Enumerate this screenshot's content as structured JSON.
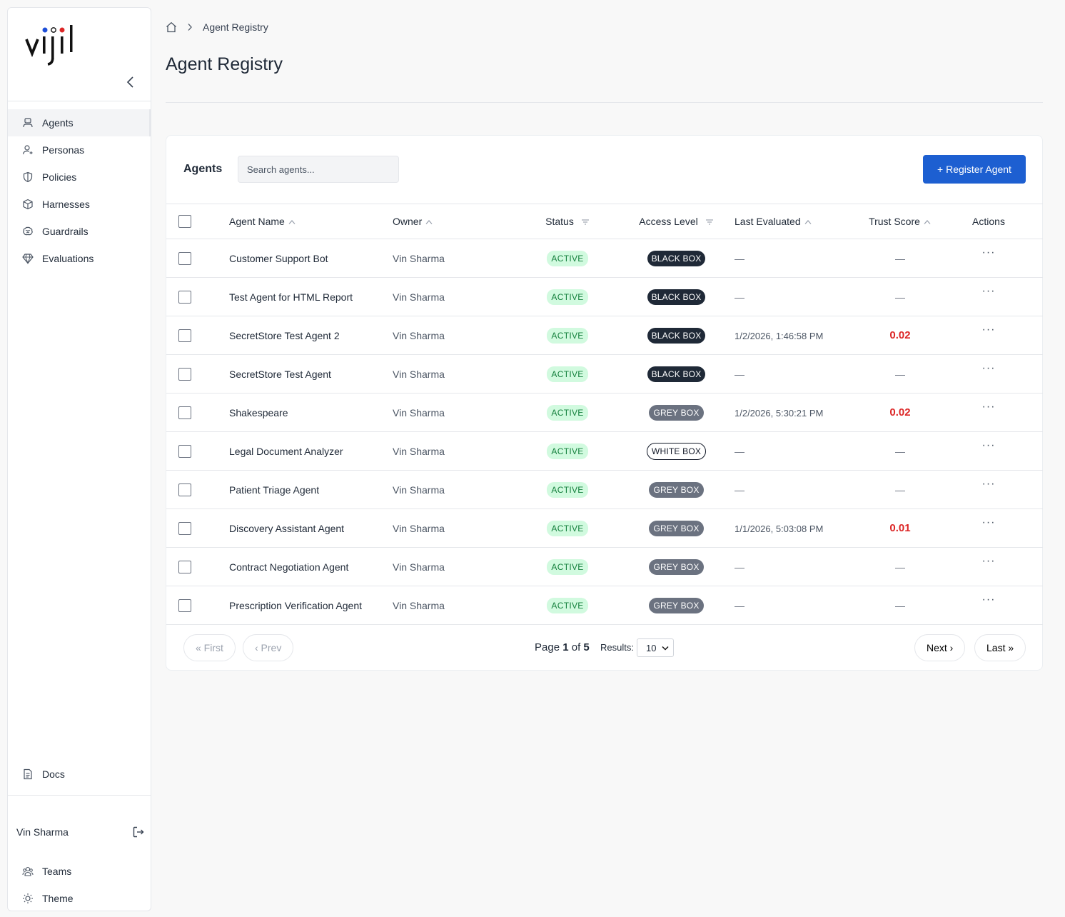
{
  "sidebar": {
    "nav": [
      {
        "label": "Agents",
        "icon": "agent-icon",
        "active": true
      },
      {
        "label": "Personas",
        "icon": "persona-icon"
      },
      {
        "label": "Policies",
        "icon": "shield-icon"
      },
      {
        "label": "Harnesses",
        "icon": "cube-icon"
      },
      {
        "label": "Guardrails",
        "icon": "brain-icon"
      },
      {
        "label": "Evaluations",
        "icon": "diamond-icon"
      }
    ],
    "docs_label": "Docs",
    "user_name": "Vin Sharma",
    "teams_label": "Teams",
    "theme_label": "Theme"
  },
  "breadcrumb": {
    "current": "Agent Registry"
  },
  "page_title": "Agent Registry",
  "card": {
    "title": "Agents",
    "search_placeholder": "Search agents...",
    "register_label": "+ Register Agent"
  },
  "table": {
    "headers": {
      "name": "Agent Name",
      "owner": "Owner",
      "status": "Status",
      "access": "Access Level",
      "evaluated": "Last Evaluated",
      "trust": "Trust Score",
      "actions": "Actions"
    },
    "rows": [
      {
        "name": "Customer Support Bot",
        "owner": "Vin Sharma",
        "status": "ACTIVE",
        "access": "BLACK BOX",
        "access_style": "black",
        "evaluated": "—",
        "trust": "—"
      },
      {
        "name": "Test Agent for HTML Report",
        "owner": "Vin Sharma",
        "status": "ACTIVE",
        "access": "BLACK BOX",
        "access_style": "black",
        "evaluated": "—",
        "trust": "—"
      },
      {
        "name": "SecretStore Test Agent 2",
        "owner": "Vin Sharma",
        "status": "ACTIVE",
        "access": "BLACK BOX",
        "access_style": "black",
        "evaluated": "1/2/2026, 1:46:58 PM",
        "trust": "0.02"
      },
      {
        "name": "SecretStore Test Agent",
        "owner": "Vin Sharma",
        "status": "ACTIVE",
        "access": "BLACK BOX",
        "access_style": "black",
        "evaluated": "—",
        "trust": "—"
      },
      {
        "name": "Shakespeare",
        "owner": "Vin Sharma",
        "status": "ACTIVE",
        "access": "GREY BOX",
        "access_style": "grey",
        "evaluated": "1/2/2026, 5:30:21 PM",
        "trust": "0.02"
      },
      {
        "name": "Legal Document Analyzer",
        "owner": "Vin Sharma",
        "status": "ACTIVE",
        "access": "WHITE BOX",
        "access_style": "white",
        "evaluated": "—",
        "trust": "—"
      },
      {
        "name": "Patient Triage Agent",
        "owner": "Vin Sharma",
        "status": "ACTIVE",
        "access": "GREY BOX",
        "access_style": "grey",
        "evaluated": "—",
        "trust": "—"
      },
      {
        "name": "Discovery Assistant Agent",
        "owner": "Vin Sharma",
        "status": "ACTIVE",
        "access": "GREY BOX",
        "access_style": "grey",
        "evaluated": "1/1/2026, 5:03:08 PM",
        "trust": "0.01"
      },
      {
        "name": "Contract Negotiation Agent",
        "owner": "Vin Sharma",
        "status": "ACTIVE",
        "access": "GREY BOX",
        "access_style": "grey",
        "evaluated": "—",
        "trust": "—"
      },
      {
        "name": "Prescription Verification Agent",
        "owner": "Vin Sharma",
        "status": "ACTIVE",
        "access": "GREY BOX",
        "access_style": "grey",
        "evaluated": "—",
        "trust": "—"
      }
    ],
    "actions_glyph": "···"
  },
  "pagination": {
    "first_label": "« First",
    "prev_label": "‹ Prev",
    "page_word": "Page",
    "current_page": "1",
    "of_word": "of",
    "total_pages": "5",
    "results_label": "Results:",
    "results_value": "10",
    "next_label": "Next ›",
    "last_label": "Last »"
  },
  "colors": {
    "primary": "#1d5fd1",
    "active_green_bg": "#d1fadf",
    "active_green_text": "#15803d",
    "trust_red": "#dc2626"
  }
}
